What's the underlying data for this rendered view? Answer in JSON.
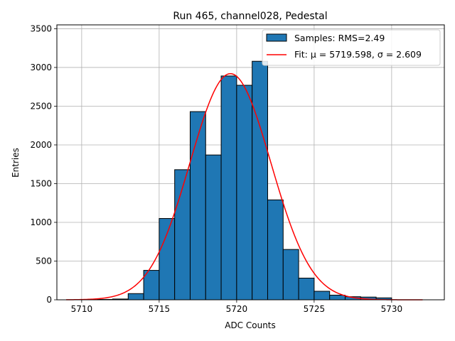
{
  "chart_data": {
    "type": "bar",
    "title": "Run 465, channel028, Pedestal",
    "xlabel": "ADC Counts",
    "ylabel": "Entries",
    "xlim": [
      5708.4,
      5733.4
    ],
    "ylim": [
      0,
      3550
    ],
    "xticks": [
      5710,
      5715,
      5720,
      5725,
      5730
    ],
    "yticks": [
      0,
      500,
      1000,
      1500,
      2000,
      2500,
      3000,
      3500
    ],
    "grid": true,
    "legend_position": "top-right",
    "histogram": {
      "name": "Samples: RMS=2.49",
      "bin_width": 1,
      "bin_starts": [
        5711,
        5712,
        5713,
        5714,
        5715,
        5716,
        5717,
        5718,
        5719,
        5720,
        5721,
        5722,
        5723,
        5724,
        5725,
        5726,
        5727,
        5728,
        5729
      ],
      "values": [
        5,
        10,
        80,
        380,
        1050,
        1680,
        2430,
        1870,
        2890,
        2770,
        3080,
        1290,
        650,
        280,
        110,
        60,
        40,
        35,
        25
      ],
      "fill_color": "#1f77b4",
      "edge_color": "#000000"
    },
    "fit": {
      "name_prefix": "Fit: ",
      "mu_label": "μ = 5719.598",
      "sigma_label": "σ = 2.609",
      "mu": 5719.598,
      "sigma": 2.609,
      "amplitude": 2920,
      "x_range": [
        5709,
        5732
      ],
      "color": "#ff0000"
    }
  }
}
